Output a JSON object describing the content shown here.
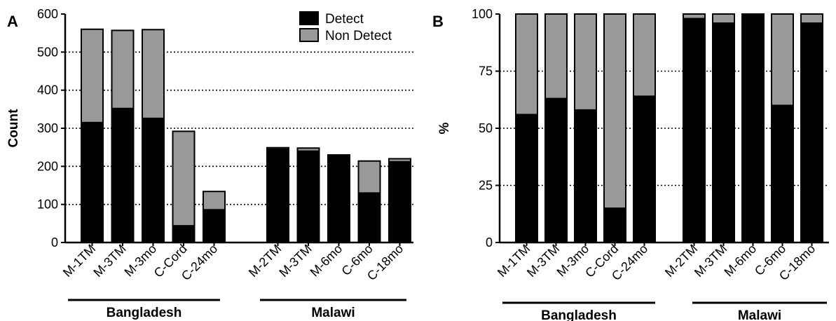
{
  "chart_data": [
    {
      "panel": "A",
      "type": "bar",
      "stacked": true,
      "ylabel": "Count",
      "ylim": [
        0,
        600
      ],
      "yticks": [
        0,
        100,
        200,
        300,
        400,
        500,
        600
      ],
      "grid": "dotted horizontal",
      "legend_position": "top-right",
      "categories": [
        "M-1TM",
        "M-3TM",
        "M-3mo",
        "C-Cord",
        "C-24mo",
        "M-2TM",
        "M-3TM",
        "M-6mo",
        "C-6mo",
        "C-18mo"
      ],
      "groups": [
        {
          "label": "Bangladesh",
          "start": 0,
          "end": 4
        },
        {
          "label": "Malawi",
          "start": 5,
          "end": 9
        }
      ],
      "series": [
        {
          "name": "Detect",
          "color": "#000000",
          "values": [
            315,
            352,
            326,
            44,
            86,
            245,
            240,
            230,
            130,
            212
          ]
        },
        {
          "name": "Non Detect",
          "color": "#999999",
          "values": [
            245,
            205,
            233,
            248,
            48,
            4,
            8,
            0,
            84,
            8
          ]
        }
      ]
    },
    {
      "panel": "B",
      "type": "bar",
      "stacked": true,
      "ylabel": "%",
      "ylim": [
        0,
        100
      ],
      "yticks": [
        0,
        25,
        50,
        75,
        100
      ],
      "grid": "dotted horizontal",
      "categories": [
        "M-1TM",
        "M-3TM",
        "M-3mo",
        "C-Cord",
        "C-24mo",
        "M-2TM",
        "M-3TM",
        "M-6mo",
        "C-6mo",
        "C-18mo"
      ],
      "groups": [
        {
          "label": "Bangladesh",
          "start": 0,
          "end": 4
        },
        {
          "label": "Malawi",
          "start": 5,
          "end": 9
        }
      ],
      "series": [
        {
          "name": "Detect",
          "color": "#000000",
          "values": [
            56,
            63,
            58,
            15,
            64,
            98,
            96,
            100,
            60,
            96
          ]
        },
        {
          "name": "Non Detect",
          "color": "#999999",
          "values": [
            44,
            37,
            42,
            85,
            36,
            2,
            4,
            0,
            40,
            4
          ]
        }
      ]
    }
  ]
}
